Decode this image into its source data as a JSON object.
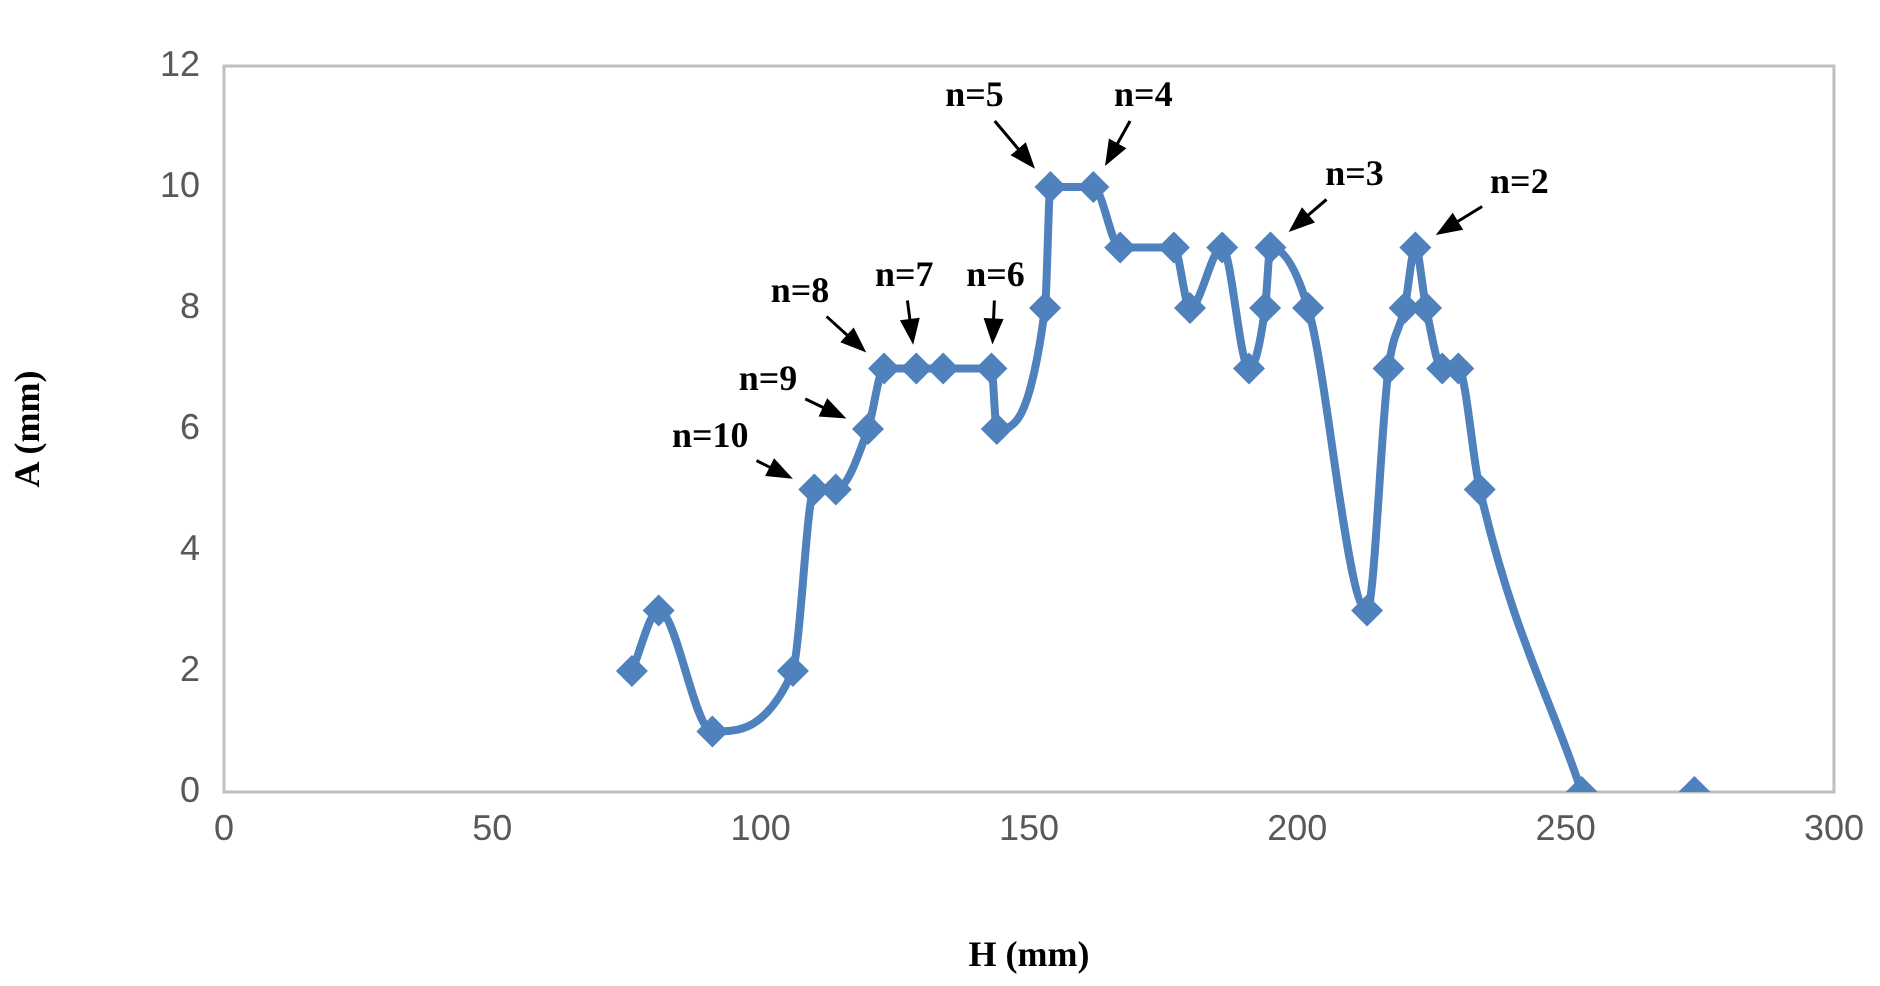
{
  "chart_data": {
    "type": "line",
    "xlabel": "H (mm)",
    "ylabel": "A (mm)",
    "xlim": [
      0,
      300
    ],
    "xticks": [
      0,
      50,
      100,
      150,
      200,
      250,
      300
    ],
    "ylim": [
      0,
      12
    ],
    "yticks": [
      0,
      2,
      4,
      6,
      8,
      10,
      12
    ],
    "grid": false,
    "legend": false,
    "marker": "diamond",
    "line_style": "solid",
    "series": [
      {
        "color": "#4f81bd",
        "x": [
          76,
          81,
          91,
          106,
          110,
          114,
          120,
          123,
          129,
          134,
          143,
          144,
          153,
          154,
          162,
          167,
          177,
          180,
          186,
          191,
          194,
          195,
          202,
          213,
          217,
          220,
          222,
          224,
          227,
          230,
          234,
          253
        ],
        "values": [
          2,
          3,
          1,
          2,
          5,
          5,
          6,
          7,
          7,
          7,
          7,
          6,
          8,
          10,
          10,
          9,
          9,
          8,
          9,
          7,
          8,
          9,
          8,
          3,
          7,
          8,
          9,
          8,
          7,
          7,
          5,
          0
        ]
      },
      {
        "type": "scatter",
        "color": "#4f81bd",
        "x": [
          274
        ],
        "values": [
          0
        ]
      }
    ],
    "annotations": [
      {
        "text": "n=10",
        "x": 110,
        "y": 5
      },
      {
        "text": "n=9",
        "x": 120,
        "y": 6
      },
      {
        "text": "n=8",
        "x": 123,
        "y": 7
      },
      {
        "text": "n=7",
        "x": 129,
        "y": 7
      },
      {
        "text": "n=6",
        "x": 143,
        "y": 7
      },
      {
        "text": "n=5",
        "x": 154,
        "y": 10
      },
      {
        "text": "n=4",
        "x": 162,
        "y": 10
      },
      {
        "text": "n=3",
        "x": 195,
        "y": 9
      },
      {
        "text": "n=2",
        "x": 222,
        "y": 9
      }
    ]
  }
}
